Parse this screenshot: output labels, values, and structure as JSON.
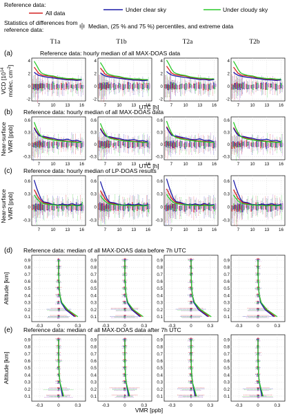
{
  "legend": {
    "reference_label": "Reference data:",
    "series": [
      {
        "name": "All data",
        "color": "#d42020"
      },
      {
        "name": "Under clear sky",
        "color": "#1a1aa8"
      },
      {
        "name": "Under cloudy sky",
        "color": "#28c828"
      }
    ],
    "stats_label_line1": "Statistics of differences from",
    "stats_label_line2": "reference data:",
    "boxplot_label": "Median, (25 % and 75 %) percentiles, and extreme data"
  },
  "columns": [
    "T1a",
    "T1b",
    "T2a",
    "T2b"
  ],
  "chart_data": [
    {
      "type": "line",
      "panel": "(a)",
      "title": "Reference data: hourly median of all MAX-DOAS data",
      "ylabel": "VCD [10^14 molec. cm^-2]",
      "ylabel_line1": "VCD [10",
      "ylabel_exp": "14",
      "ylabel_line2": "molec. cm",
      "ylabel_exp2": "-2",
      "ylabel_end": "]",
      "xlabel": "UTC [h]",
      "xlim": [
        5.5,
        16.8
      ],
      "ylim": [
        -2.3,
        4.4
      ],
      "xticks": [
        7,
        10,
        13,
        16
      ],
      "yticks": [
        -2,
        0,
        2,
        4
      ],
      "x": [
        6,
        6.5,
        7,
        7.5,
        8,
        9,
        10,
        11,
        12,
        13,
        14,
        15,
        16
      ],
      "series": [
        {
          "name": "All data",
          "values": [
            3.0,
            2.5,
            2.0,
            1.8,
            1.7,
            1.6,
            1.5,
            1.3,
            1.2,
            1.1,
            1.1,
            1.0,
            1.0
          ]
        },
        {
          "name": "Under clear sky",
          "values": [
            2.2,
            1.9,
            1.7,
            1.6,
            1.5,
            1.4,
            1.3,
            1.2,
            1.1,
            1.0,
            1.0,
            0.9,
            1.0
          ]
        },
        {
          "name": "Under cloudy sky",
          "values": [
            3.9,
            3.3,
            2.6,
            2.1,
            1.9,
            1.7,
            1.6,
            1.4,
            1.3,
            1.2,
            1.2,
            1.1,
            1.1
          ]
        }
      ]
    },
    {
      "type": "line",
      "panel": "(b)",
      "title": "Reference data: hourly median of all MAX-DOAS data",
      "ylabel": "Near-surface VMR [ppb]",
      "ylabel_line1": "Near-surface",
      "ylabel_line2": "VMR [ppb]",
      "xlabel": "UTC [h]",
      "xlim": [
        5.5,
        16.8
      ],
      "ylim": [
        -0.38,
        0.68
      ],
      "xticks": [
        7,
        10,
        13,
        16
      ],
      "yticks": [
        -0.3,
        0,
        0.3,
        0.6
      ],
      "x": [
        6,
        6.5,
        7,
        7.5,
        8,
        9,
        10,
        11,
        12,
        13,
        14,
        15,
        16
      ],
      "series": [
        {
          "name": "All data",
          "values": [
            0.42,
            0.32,
            0.24,
            0.2,
            0.18,
            0.15,
            0.12,
            0.1,
            0.09,
            0.08,
            0.07,
            0.06,
            0.05
          ]
        },
        {
          "name": "Under clear sky",
          "values": [
            0.4,
            0.3,
            0.22,
            0.2,
            0.2,
            0.17,
            0.15,
            0.12,
            0.11,
            0.13,
            0.09,
            0.1,
            0.06
          ]
        },
        {
          "name": "Under cloudy sky",
          "values": [
            0.55,
            0.4,
            0.28,
            0.2,
            0.16,
            0.13,
            0.11,
            0.09,
            0.08,
            0.07,
            0.06,
            0.05,
            0.05
          ]
        }
      ]
    },
    {
      "type": "line",
      "panel": "(c)",
      "title": "Reference data: hourly median of LP-DOAS results",
      "ylabel": "Near-surface VMR [ppb]",
      "ylabel_line1": "Near-surface",
      "ylabel_line2": "VMR [ppb]",
      "xlabel": "",
      "xlim": [
        5.5,
        16.8
      ],
      "ylim": [
        -0.42,
        0.72
      ],
      "xticks": [
        7,
        10,
        13,
        16
      ],
      "yticks": [
        -0.3,
        0,
        0.3,
        0.6
      ],
      "x": [
        6,
        6.5,
        7,
        7.5,
        8,
        9,
        10,
        11,
        12,
        13,
        14,
        15,
        16
      ],
      "series": [
        {
          "name": "All data",
          "values": [
            0.4,
            0.3,
            0.2,
            0.14,
            0.1,
            0.08,
            0.06,
            0.05,
            0.05,
            0.04,
            0.05,
            0.04,
            0.05
          ]
        },
        {
          "name": "Under clear sky",
          "values": [
            0.62,
            0.45,
            0.3,
            0.18,
            0.12,
            0.1,
            0.06,
            0.05,
            0.07,
            0.05,
            0.08,
            0.04,
            0.06
          ]
        },
        {
          "name": "Under cloudy sky",
          "values": [
            0.28,
            0.2,
            0.14,
            0.1,
            0.08,
            0.06,
            0.05,
            0.04,
            0.04,
            0.03,
            0.04,
            0.03,
            0.04
          ]
        }
      ]
    },
    {
      "type": "line",
      "panel": "(d)",
      "title": "Reference data: median of all MAX-DOAS data before 7h UTC",
      "ylabel": "Altitude [km]",
      "xlabel": "",
      "xlim": [
        -0.42,
        0.42
      ],
      "ylim": [
        0.03,
        0.97
      ],
      "xticks": [
        -0.3,
        0,
        0.3
      ],
      "yticks": [
        0.1,
        0.2,
        0.3,
        0.4,
        0.5,
        0.6,
        0.7,
        0.8,
        0.9
      ],
      "altitude": [
        0.1,
        0.2,
        0.3,
        0.4,
        0.5,
        0.6,
        0.7,
        0.8,
        0.9
      ],
      "series": [
        {
          "name": "All data",
          "values": [
            0.27,
            0.13,
            0.05,
            0.02,
            0.01,
            0.005,
            0.0,
            0.0,
            0.0
          ]
        },
        {
          "name": "Under clear sky",
          "values": [
            0.25,
            0.11,
            0.04,
            0.02,
            0.01,
            0.005,
            0.0,
            0.0,
            0.0
          ]
        },
        {
          "name": "Under cloudy sky",
          "values": [
            0.3,
            0.14,
            0.05,
            0.02,
            0.01,
            0.005,
            0.0,
            0.0,
            0.0
          ]
        }
      ]
    },
    {
      "type": "line",
      "panel": "(e)",
      "title": "Reference data: median of all MAX-DOAS data after 7h UTC",
      "ylabel": "Altitude [km]",
      "xlabel": "VMR [ppb]",
      "xlim": [
        -0.42,
        0.42
      ],
      "ylim": [
        0.03,
        0.97
      ],
      "xticks": [
        -0.3,
        0,
        0.3
      ],
      "yticks": [
        0.1,
        0.2,
        0.3,
        0.4,
        0.5,
        0.6,
        0.7,
        0.8,
        0.9
      ],
      "altitude": [
        0.1,
        0.2,
        0.3,
        0.4,
        0.5,
        0.6,
        0.7,
        0.8,
        0.9
      ],
      "series": [
        {
          "name": "All data",
          "values": [
            0.07,
            0.04,
            0.02,
            0.01,
            0.005,
            0.0,
            0.0,
            0.0,
            0.0
          ]
        },
        {
          "name": "Under clear sky",
          "values": [
            0.06,
            0.04,
            0.02,
            0.01,
            0.005,
            0.0,
            0.0,
            0.0,
            0.0
          ]
        },
        {
          "name": "Under cloudy sky",
          "values": [
            0.08,
            0.05,
            0.02,
            0.01,
            0.005,
            0.0,
            0.0,
            0.0,
            0.0
          ]
        }
      ]
    }
  ]
}
